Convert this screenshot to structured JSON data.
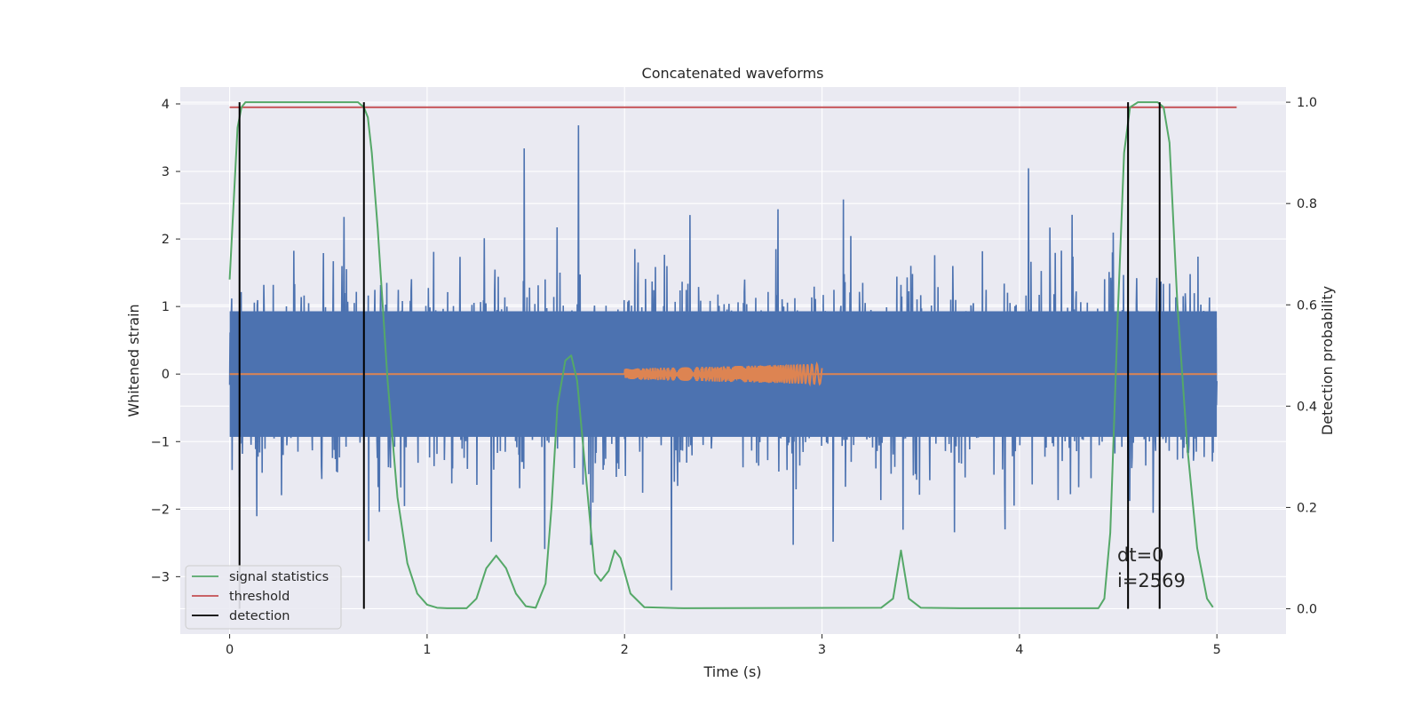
{
  "chart_data": {
    "type": "line",
    "title": "Concatenated waveforms",
    "xlabel": "Time (s)",
    "ylabel": "Whitened strain",
    "y2label": "Detection probability",
    "xlim": [
      -0.25,
      5.35
    ],
    "ylim": [
      -3.85,
      4.25
    ],
    "y2lim": [
      -0.05,
      1.03
    ],
    "xticks": [
      0,
      1,
      2,
      3,
      4,
      5
    ],
    "xtick_labels": [
      "0",
      "1",
      "2",
      "3",
      "4",
      "5"
    ],
    "yticks": [
      -3,
      -2,
      -1,
      0,
      1,
      2,
      3,
      4
    ],
    "ytick_labels": [
      "−3",
      "−2",
      "−1",
      "0",
      "1",
      "2",
      "3",
      "4"
    ],
    "y2ticks": [
      0.0,
      0.2,
      0.4,
      0.6,
      0.8,
      1.0
    ],
    "y2tick_labels": [
      "0.0",
      "0.2",
      "0.4",
      "0.6",
      "0.8",
      "1.0"
    ],
    "grid": true,
    "legend_position": "lower-left",
    "legend": [
      {
        "label": "signal statistics",
        "color": "#55a868"
      },
      {
        "label": "threshold",
        "color": "#c44e52"
      },
      {
        "label": "detection",
        "color": "#000000"
      }
    ],
    "series": [
      {
        "name": "whitened strain (noise)",
        "axis": "left",
        "color": "#4c72b0",
        "x_range": [
          0,
          5
        ],
        "typical_range": [
          -1.5,
          1.5
        ],
        "extreme_range": [
          -3.5,
          3.85
        ]
      },
      {
        "name": "injected chirp",
        "axis": "left",
        "color": "#dd8452",
        "x_range": [
          0,
          5
        ],
        "chirp_x_range": [
          2.0,
          3.0
        ],
        "chirp_amplitude_range": [
          0.08,
          0.15
        ]
      },
      {
        "name": "signal statistics",
        "axis": "right",
        "color": "#55a868",
        "x": [
          0,
          0.02,
          0.04,
          0.06,
          0.08,
          0.1,
          0.3,
          0.6,
          0.65,
          0.68,
          0.7,
          0.72,
          0.75,
          0.8,
          0.85,
          0.9,
          0.95,
          1.0,
          1.05,
          1.1,
          1.2,
          1.25,
          1.3,
          1.35,
          1.4,
          1.45,
          1.5,
          1.55,
          1.6,
          1.63,
          1.66,
          1.7,
          1.73,
          1.76,
          1.8,
          1.85,
          1.88,
          1.92,
          1.95,
          1.98,
          2.03,
          2.1,
          2.3,
          3.3,
          3.36,
          3.4,
          3.44,
          3.5,
          3.7,
          4.4,
          4.43,
          4.46,
          4.5,
          4.53,
          4.56,
          4.6,
          4.7,
          4.73,
          4.76,
          4.8,
          4.85,
          4.9,
          4.95,
          4.98
        ],
        "y": [
          0.65,
          0.8,
          0.95,
          0.99,
          1.0,
          1.0,
          1.0,
          1.0,
          1.0,
          0.99,
          0.97,
          0.9,
          0.75,
          0.45,
          0.22,
          0.09,
          0.03,
          0.008,
          0.002,
          0.001,
          0.001,
          0.02,
          0.08,
          0.105,
          0.08,
          0.03,
          0.005,
          0.002,
          0.05,
          0.2,
          0.4,
          0.49,
          0.5,
          0.45,
          0.28,
          0.07,
          0.055,
          0.075,
          0.115,
          0.1,
          0.03,
          0.003,
          0.001,
          0.002,
          0.02,
          0.115,
          0.02,
          0.002,
          0.001,
          0.001,
          0.02,
          0.15,
          0.6,
          0.9,
          0.99,
          1.0,
          1.0,
          0.99,
          0.92,
          0.6,
          0.32,
          0.12,
          0.02,
          0.003
        ]
      },
      {
        "name": "threshold",
        "axis": "right",
        "color": "#c44e52",
        "x": [
          0,
          5.1
        ],
        "y": [
          0.99,
          0.99
        ]
      }
    ],
    "detections": [
      0.05,
      0.68,
      4.55,
      4.71
    ],
    "annotations": [
      "dt=0",
      "i=2569"
    ]
  }
}
